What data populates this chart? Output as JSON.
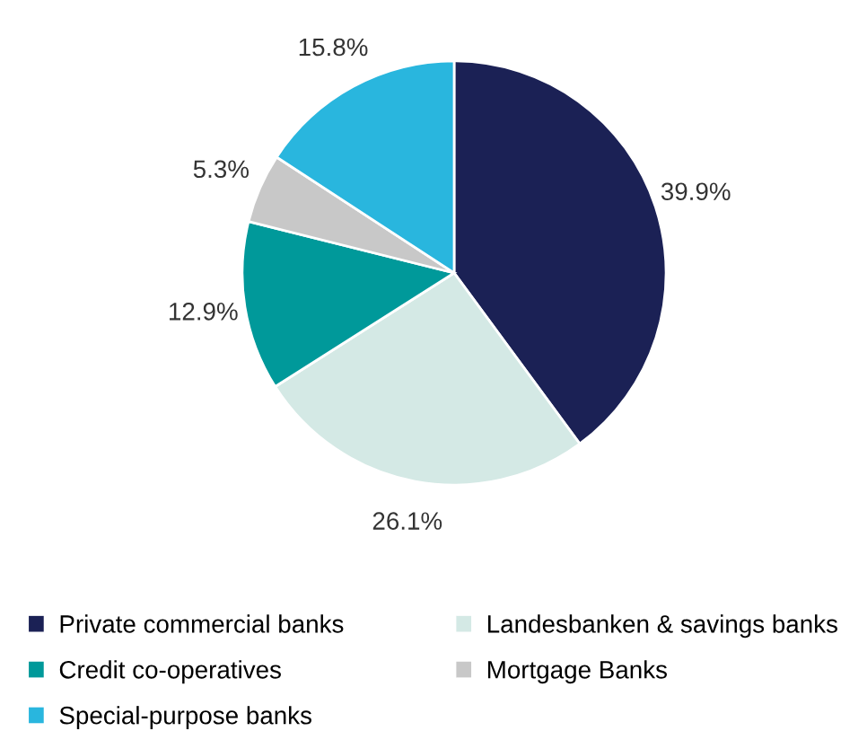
{
  "chart_data": {
    "type": "pie",
    "categories": [
      "Private commercial banks",
      "Landesbanken & savings banks",
      "Credit co-operatives",
      "Mortgage Banks",
      "Special-purpose banks"
    ],
    "values": [
      39.9,
      26.1,
      12.9,
      5.3,
      15.8
    ],
    "colors": [
      "#1b2155",
      "#d4e9e5",
      "#00999a",
      "#c8c8c8",
      "#29b6de"
    ],
    "value_labels": [
      "39.9%",
      "26.1%",
      "12.9%",
      "5.3%",
      "15.8%"
    ],
    "legend": "bottom"
  }
}
